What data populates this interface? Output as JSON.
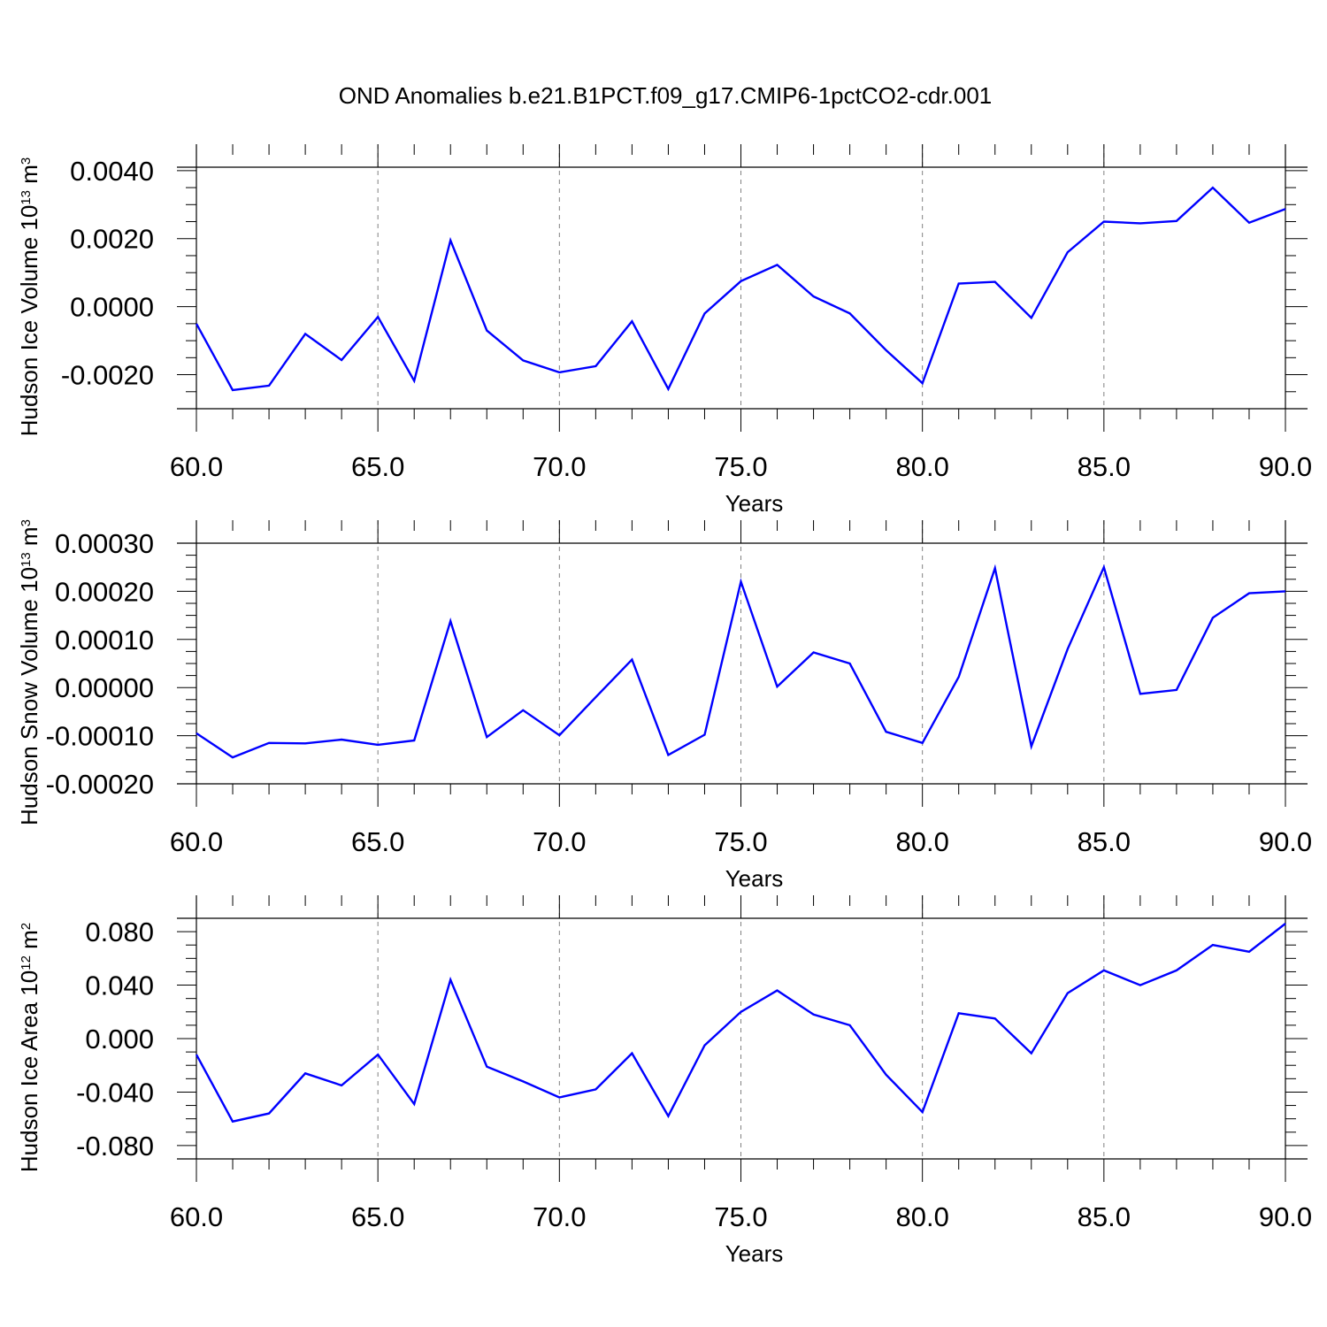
{
  "title": "OND Anomalies b.e21.B1PCT.f09_g17.CMIP6-1pctCO2-cdr.001",
  "line_color": "#0000ff",
  "chart_data": [
    {
      "type": "line",
      "ylabel": "Hudson Ice Volume 10",
      "ylabel_exp": "13",
      "ylabel_unit": " m",
      "ylabel_unit_exp": "3",
      "xlabel": "Years",
      "xlim": [
        60,
        90
      ],
      "ylim": [
        -0.003,
        0.0041
      ],
      "xticks": [
        60,
        65,
        70,
        75,
        80,
        85,
        90
      ],
      "xtick_labels": [
        "60.0",
        "65.0",
        "70.0",
        "75.0",
        "80.0",
        "85.0",
        "90.0"
      ],
      "yticks": [
        0.004,
        0.002,
        0.0,
        -0.002
      ],
      "ytick_labels": [
        "0.0040",
        "0.0020",
        "0.0000",
        "-0.0020"
      ],
      "x": [
        60,
        61,
        62,
        63,
        64,
        65,
        66,
        67,
        68,
        69,
        70,
        71,
        72,
        73,
        74,
        75,
        76,
        77,
        78,
        79,
        80,
        81,
        82,
        83,
        84,
        85,
        86,
        87,
        88,
        89,
        90
      ],
      "series": [
        {
          "values": [
            -0.0005,
            -0.00245,
            -0.00232,
            -0.0008,
            -0.00157,
            -0.0003,
            -0.00218,
            0.00195,
            -0.0007,
            -0.00158,
            -0.00193,
            -0.00175,
            -0.00043,
            -0.00242,
            -0.0002,
            0.00075,
            0.00123,
            0.0003,
            -0.0002,
            -0.00128,
            -0.00225,
            0.00068,
            0.00073,
            -0.00033,
            0.0016,
            0.0025,
            0.00245,
            0.00252,
            0.0035,
            0.00247,
            0.00287
          ]
        }
      ]
    },
    {
      "type": "line",
      "ylabel": "Hudson Snow Volume 10",
      "ylabel_exp": "13",
      "ylabel_unit": " m",
      "ylabel_unit_exp": "3",
      "xlabel": "Years",
      "xlim": [
        60,
        90
      ],
      "ylim": [
        -0.0002,
        0.0003
      ],
      "xticks": [
        60,
        65,
        70,
        75,
        80,
        85,
        90
      ],
      "xtick_labels": [
        "60.0",
        "65.0",
        "70.0",
        "75.0",
        "80.0",
        "85.0",
        "90.0"
      ],
      "yticks": [
        0.0003,
        0.0002,
        0.0001,
        0.0,
        -0.0001,
        -0.0002
      ],
      "ytick_labels": [
        "0.00030",
        "0.00020",
        "0.00010",
        "0.00000",
        "-0.00010",
        "-0.00020"
      ],
      "x": [
        60,
        61,
        62,
        63,
        64,
        65,
        66,
        67,
        68,
        69,
        70,
        71,
        72,
        73,
        74,
        75,
        76,
        77,
        78,
        79,
        80,
        81,
        82,
        83,
        84,
        85,
        86,
        87,
        88,
        89,
        90
      ],
      "series": [
        {
          "values": [
            -9.5e-05,
            -0.000145,
            -0.000115,
            -0.000116,
            -0.000108,
            -0.000119,
            -0.00011,
            0.000138,
            -0.000103,
            -4.7e-05,
            -9.9e-05,
            -2e-05,
            5.8e-05,
            -0.00014,
            -9.8e-05,
            0.00022,
            2e-06,
            7.3e-05,
            5e-05,
            -9.2e-05,
            -0.000115,
            2.2e-05,
            0.000248,
            -0.000122,
            8e-05,
            0.00025,
            -1.3e-05,
            -5e-06,
            0.000145,
            0.000196,
            0.0002
          ]
        }
      ]
    },
    {
      "type": "line",
      "ylabel": "Hudson Ice Area 10",
      "ylabel_exp": "12",
      "ylabel_unit": " m",
      "ylabel_unit_exp": "2",
      "xlabel": "Years",
      "xlim": [
        60,
        90
      ],
      "ylim": [
        -0.09,
        0.09
      ],
      "xticks": [
        60,
        65,
        70,
        75,
        80,
        85,
        90
      ],
      "xtick_labels": [
        "60.0",
        "65.0",
        "70.0",
        "75.0",
        "80.0",
        "85.0",
        "90.0"
      ],
      "yticks": [
        0.08,
        0.04,
        0.0,
        -0.04,
        -0.08
      ],
      "ytick_labels": [
        "0.080",
        "0.040",
        "0.000",
        "-0.040",
        "-0.080"
      ],
      "x": [
        60,
        61,
        62,
        63,
        64,
        65,
        66,
        67,
        68,
        69,
        70,
        71,
        72,
        73,
        74,
        75,
        76,
        77,
        78,
        79,
        80,
        81,
        82,
        83,
        84,
        85,
        86,
        87,
        88,
        89,
        90
      ],
      "series": [
        {
          "values": [
            -0.012,
            -0.062,
            -0.056,
            -0.026,
            -0.035,
            -0.012,
            -0.049,
            0.044,
            -0.021,
            -0.032,
            -0.044,
            -0.038,
            -0.011,
            -0.058,
            -0.005,
            0.02,
            0.036,
            0.018,
            0.01,
            -0.027,
            -0.055,
            0.019,
            0.015,
            -0.011,
            0.034,
            0.051,
            0.04,
            0.051,
            0.07,
            0.065,
            0.086
          ]
        }
      ]
    }
  ]
}
